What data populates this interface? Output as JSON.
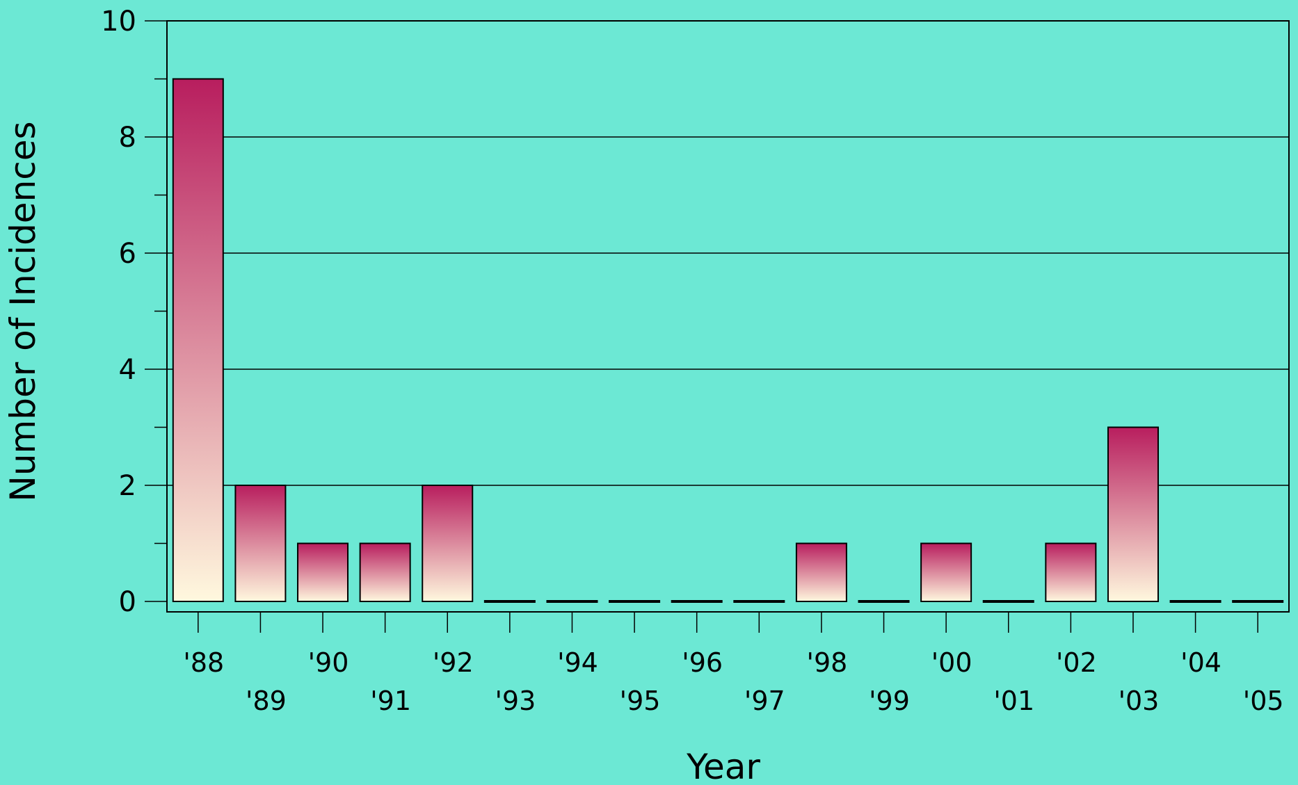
{
  "chart_data": {
    "type": "bar",
    "title": "",
    "xlabel": "Year",
    "ylabel": "Number of Incidences",
    "categories": [
      "'88",
      "'89",
      "'90",
      "'91",
      "'92",
      "'93",
      "'94",
      "'95",
      "'96",
      "'97",
      "'98",
      "'99",
      "'00",
      "'01",
      "'02",
      "'03",
      "'04",
      "'05"
    ],
    "values": [
      9,
      2,
      1,
      1,
      2,
      0,
      0,
      0,
      0,
      0,
      1,
      0,
      1,
      0,
      1,
      3,
      0,
      0
    ],
    "ylim": [
      0,
      10
    ],
    "yticks": [
      "0",
      "2",
      "4",
      "6",
      "8",
      "10"
    ],
    "grid": true,
    "legend": "none",
    "colors": {
      "background": "#6CE8D4",
      "bar_top": "#B81E5E",
      "bar_bottom": "#FFF8DE",
      "grid": "#000000"
    }
  }
}
